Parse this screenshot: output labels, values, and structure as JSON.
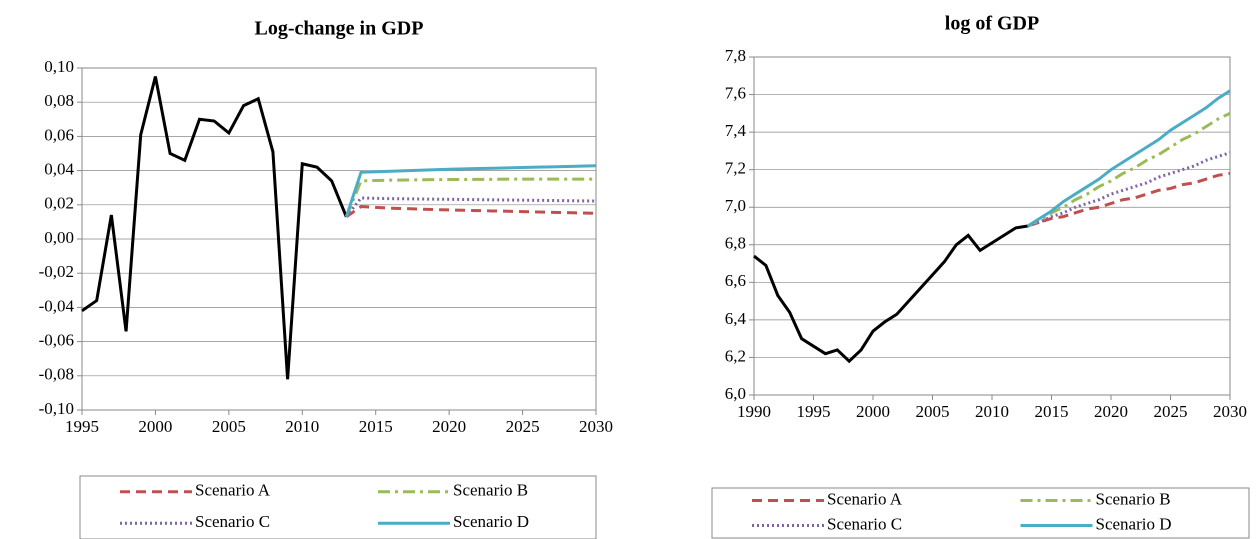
{
  "chart_data": [
    {
      "type": "line",
      "title": "Log-change in GDP",
      "x": [
        1995,
        1996,
        1997,
        1998,
        1999,
        2000,
        2001,
        2002,
        2003,
        2004,
        2005,
        2006,
        2007,
        2008,
        2009,
        2010,
        2011,
        2012,
        2013,
        2014,
        2015,
        2016,
        2017,
        2018,
        2019,
        2020,
        2021,
        2022,
        2023,
        2024,
        2025,
        2026,
        2027,
        2028,
        2029,
        2030
      ],
      "xlim": [
        1995,
        2030
      ],
      "xticks": [
        1995,
        2000,
        2005,
        2010,
        2015,
        2020,
        2025,
        2030
      ],
      "ylim": [
        -0.1,
        0.1
      ],
      "yticks": [
        {
          "value": -0.1,
          "label": "-0,10"
        },
        {
          "value": -0.08,
          "label": "-0,08"
        },
        {
          "value": -0.06,
          "label": "-0,06"
        },
        {
          "value": -0.04,
          "label": "-0,04"
        },
        {
          "value": -0.02,
          "label": "-0,02"
        },
        {
          "value": 0,
          "label": "0,00"
        },
        {
          "value": 0.02,
          "label": "0,02"
        },
        {
          "value": 0.04,
          "label": "0,04"
        },
        {
          "value": 0.06,
          "label": "0,06"
        },
        {
          "value": 0.08,
          "label": "0,08"
        },
        {
          "value": 0.1,
          "label": "0,10"
        }
      ],
      "grid": true,
      "series": [
        {
          "color": "#000000",
          "style": "solid",
          "values": [
            -0.042,
            -0.036,
            0.014,
            -0.054,
            0.061,
            0.095,
            0.05,
            0.046,
            0.07,
            0.069,
            0.062,
            0.078,
            0.082,
            0.051,
            -0.082,
            0.044,
            0.042,
            0.034,
            0.013,
            null,
            null,
            null,
            null,
            null,
            null,
            null,
            null,
            null,
            null,
            null,
            null,
            null,
            null,
            null,
            null,
            null
          ]
        },
        {
          "name": "Scenario A",
          "color": "#c0504d",
          "style": "dashed",
          "values": [
            null,
            null,
            null,
            null,
            null,
            null,
            null,
            null,
            null,
            null,
            null,
            null,
            null,
            null,
            null,
            null,
            null,
            null,
            0.013,
            0.019,
            0.0185,
            0.018,
            0.0178,
            0.0175,
            0.0172,
            0.017,
            0.0168,
            0.0166,
            0.0164,
            0.0162,
            0.016,
            0.0158,
            0.0156,
            0.0154,
            0.0152,
            0.015
          ]
        },
        {
          "name": "Scenario B",
          "color": "#9bbb59",
          "style": "dashdot",
          "values": [
            null,
            null,
            null,
            null,
            null,
            null,
            null,
            null,
            null,
            null,
            null,
            null,
            null,
            null,
            null,
            null,
            null,
            null,
            0.013,
            0.034,
            0.0342,
            0.0344,
            0.0345,
            0.0346,
            0.0347,
            0.0348,
            0.0348,
            0.0349,
            0.0349,
            0.035,
            0.035,
            0.035,
            0.035,
            0.035,
            0.035,
            0.035
          ]
        },
        {
          "name": "Scenario C",
          "color": "#8064a2",
          "style": "dotted",
          "values": [
            null,
            null,
            null,
            null,
            null,
            null,
            null,
            null,
            null,
            null,
            null,
            null,
            null,
            null,
            null,
            null,
            null,
            null,
            0.013,
            0.024,
            0.0238,
            0.0236,
            0.0235,
            0.0234,
            0.0233,
            0.0232,
            0.0231,
            0.023,
            0.0229,
            0.0228,
            0.0227,
            0.0226,
            0.0225,
            0.0224,
            0.0223,
            0.0222
          ]
        },
        {
          "name": "Scenario D",
          "color": "#4bacc6",
          "style": "solid",
          "values": [
            null,
            null,
            null,
            null,
            null,
            null,
            null,
            null,
            null,
            null,
            null,
            null,
            null,
            null,
            null,
            null,
            null,
            null,
            0.013,
            0.039,
            0.0393,
            0.0396,
            0.0399,
            0.0402,
            0.0405,
            0.0408,
            0.041,
            0.0412,
            0.0414,
            0.0416,
            0.0418,
            0.042,
            0.0422,
            0.0424,
            0.0426,
            0.0428
          ]
        }
      ]
    },
    {
      "type": "line",
      "title": "log of GDP",
      "x": [
        1990,
        1991,
        1992,
        1993,
        1994,
        1995,
        1996,
        1997,
        1998,
        1999,
        2000,
        2001,
        2002,
        2003,
        2004,
        2005,
        2006,
        2007,
        2008,
        2009,
        2010,
        2011,
        2012,
        2013,
        2014,
        2015,
        2016,
        2017,
        2018,
        2019,
        2020,
        2021,
        2022,
        2023,
        2024,
        2025,
        2026,
        2027,
        2028,
        2029,
        2030
      ],
      "xlim": [
        1990,
        2030
      ],
      "xticks": [
        1990,
        1995,
        2000,
        2005,
        2010,
        2015,
        2020,
        2025,
        2030
      ],
      "ylim": [
        6.0,
        7.8
      ],
      "yticks": [
        {
          "value": 6.0,
          "label": "6,0"
        },
        {
          "value": 6.2,
          "label": "6,2"
        },
        {
          "value": 6.4,
          "label": "6,4"
        },
        {
          "value": 6.6,
          "label": "6,6"
        },
        {
          "value": 6.8,
          "label": "6,8"
        },
        {
          "value": 7.0,
          "label": "7,0"
        },
        {
          "value": 7.2,
          "label": "7,2"
        },
        {
          "value": 7.4,
          "label": "7,4"
        },
        {
          "value": 7.6,
          "label": "7,6"
        },
        {
          "value": 7.8,
          "label": "7,8"
        }
      ],
      "grid": true,
      "series": [
        {
          "color": "#000000",
          "style": "solid",
          "values": [
            6.74,
            6.69,
            6.53,
            6.44,
            6.3,
            6.26,
            6.22,
            6.24,
            6.18,
            6.24,
            6.34,
            6.39,
            6.43,
            6.5,
            6.57,
            6.64,
            6.71,
            6.8,
            6.85,
            6.77,
            6.81,
            6.85,
            6.89,
            6.9,
            null,
            null,
            null,
            null,
            null,
            null,
            null,
            null,
            null,
            null,
            null,
            null,
            null,
            null,
            null,
            null,
            null
          ]
        },
        {
          "name": "Scenario A",
          "color": "#c0504d",
          "style": "dashed",
          "values": [
            null,
            null,
            null,
            null,
            null,
            null,
            null,
            null,
            null,
            null,
            null,
            null,
            null,
            null,
            null,
            null,
            null,
            null,
            null,
            null,
            null,
            null,
            null,
            6.9,
            6.92,
            6.94,
            6.95,
            6.97,
            6.99,
            7.0,
            7.02,
            7.04,
            7.05,
            7.07,
            7.09,
            7.1,
            7.12,
            7.13,
            7.15,
            7.17,
            7.18
          ]
        },
        {
          "name": "Scenario B",
          "color": "#9bbb59",
          "style": "dashdot",
          "values": [
            null,
            null,
            null,
            null,
            null,
            null,
            null,
            null,
            null,
            null,
            null,
            null,
            null,
            null,
            null,
            null,
            null,
            null,
            null,
            null,
            null,
            null,
            null,
            6.9,
            6.93,
            6.97,
            7.0,
            7.04,
            7.07,
            7.11,
            7.14,
            7.18,
            7.21,
            7.25,
            7.28,
            7.32,
            7.36,
            7.39,
            7.43,
            7.47,
            7.5
          ]
        },
        {
          "name": "Scenario C",
          "color": "#8064a2",
          "style": "dotted",
          "values": [
            null,
            null,
            null,
            null,
            null,
            null,
            null,
            null,
            null,
            null,
            null,
            null,
            null,
            null,
            null,
            null,
            null,
            null,
            null,
            null,
            null,
            null,
            null,
            6.9,
            6.92,
            6.95,
            6.97,
            7.0,
            7.02,
            7.04,
            7.07,
            7.09,
            7.11,
            7.13,
            7.16,
            7.18,
            7.2,
            7.22,
            7.25,
            7.27,
            7.29
          ]
        },
        {
          "name": "Scenario D",
          "color": "#4bacc6",
          "style": "solid",
          "values": [
            null,
            null,
            null,
            null,
            null,
            null,
            null,
            null,
            null,
            null,
            null,
            null,
            null,
            null,
            null,
            null,
            null,
            null,
            null,
            null,
            null,
            null,
            null,
            6.9,
            6.94,
            6.98,
            7.03,
            7.07,
            7.11,
            7.15,
            7.2,
            7.24,
            7.28,
            7.32,
            7.36,
            7.41,
            7.45,
            7.49,
            7.53,
            7.58,
            7.62
          ]
        }
      ]
    }
  ]
}
